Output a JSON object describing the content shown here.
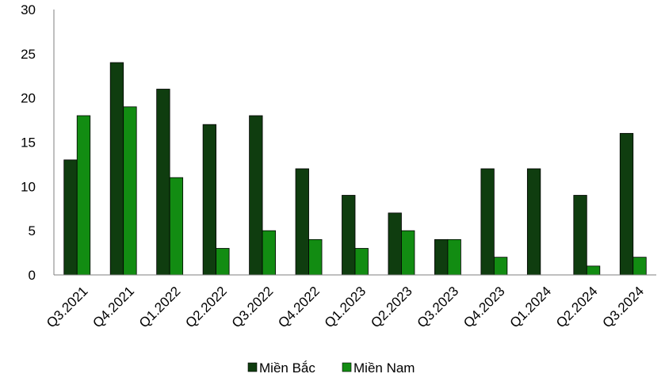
{
  "chart_data": {
    "type": "bar",
    "title": "",
    "xlabel": "",
    "ylabel": "",
    "ylim": [
      0,
      30
    ],
    "yticks": [
      0,
      5,
      10,
      15,
      20,
      25,
      30
    ],
    "grid": false,
    "legend_position": "bottom",
    "categories": [
      "Q3.2021",
      "Q4.2021",
      "Q1.2022",
      "Q2.2022",
      "Q3.2022",
      "Q4.2022",
      "Q1.2023",
      "Q2.2023",
      "Q3.2023",
      "Q4.2023",
      "Q1.2024",
      "Q2.2024",
      "Q3.2024"
    ],
    "series": [
      {
        "name": "Miền Bắc",
        "color": "#0f3d0f",
        "values": [
          13,
          24,
          21,
          17,
          18,
          12,
          9,
          7,
          4,
          12,
          12,
          9,
          16
        ]
      },
      {
        "name": "Miền Nam",
        "color": "#128c12",
        "values": [
          18,
          19,
          11,
          3,
          5,
          4,
          3,
          5,
          4,
          2,
          0,
          1,
          2
        ]
      }
    ]
  }
}
